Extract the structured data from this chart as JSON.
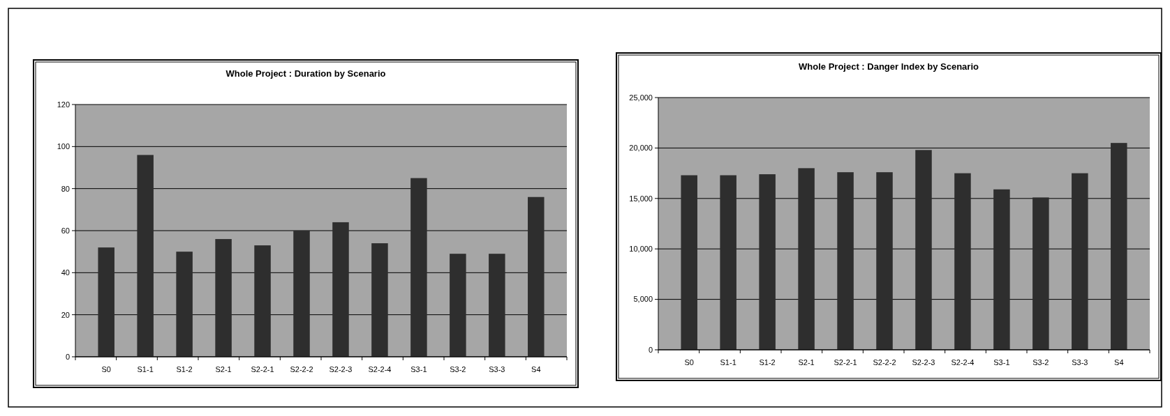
{
  "chart_data": [
    {
      "type": "bar",
      "title": "Whole Project : Duration by Scenario",
      "categories": [
        "S0",
        "S1-1",
        "S1-2",
        "S2-1",
        "S2-2-1",
        "S2-2-2",
        "S2-2-3",
        "S2-2-4",
        "S3-1",
        "S3-2",
        "S3-3",
        "S4"
      ],
      "values": [
        52,
        96,
        50,
        56,
        53,
        60,
        64,
        54,
        85,
        49,
        49,
        76
      ],
      "color": "#2e2e2e",
      "ylim": [
        0,
        120
      ],
      "yticks": [
        0,
        20,
        40,
        60,
        80,
        100,
        120
      ],
      "grid": "y"
    },
    {
      "type": "bar",
      "title": "Whole Project : Danger Index by Scenario",
      "categories": [
        "S0",
        "S1-1",
        "S1-2",
        "S2-1",
        "S2-2-1",
        "S2-2-2",
        "S2-2-3",
        "S2-2-4",
        "S3-1",
        "S3-2",
        "S3-3",
        "S4"
      ],
      "values": [
        17300,
        17300,
        17400,
        18000,
        17600,
        17600,
        19800,
        17500,
        15900,
        15100,
        17500,
        20500
      ],
      "color": "#2e2e2e",
      "ylim": [
        0,
        25000
      ],
      "yticks": [
        0,
        {
          "value": 5000,
          "label": "5,000"
        },
        {
          "value": 10000,
          "label": "10,000"
        },
        {
          "value": 15000,
          "label": "15,000"
        },
        {
          "value": 20000,
          "label": "20,000"
        },
        {
          "value": 25000,
          "label": "25,000"
        }
      ],
      "grid": "y"
    }
  ]
}
